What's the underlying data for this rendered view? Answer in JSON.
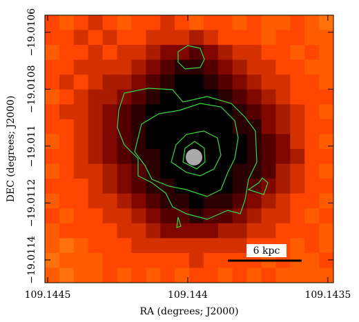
{
  "chart_data": {
    "type": "heatmap",
    "xlabel": "RA (degrees; J2000)",
    "ylabel": "DEC (degrees; J2000)",
    "xlim": [
      109.14451,
      109.14348
    ],
    "ylim": [
      -19.01054,
      -19.01148
    ],
    "xticks": [
      109.1445,
      109.144,
      109.1435
    ],
    "yticks": [
      {
        "value": -19.0106,
        "label": "−19.0106"
      },
      {
        "value": -19.0108,
        "label": "−19.0108"
      },
      {
        "value": -19.011,
        "label": "−19.011"
      },
      {
        "value": -19.0112,
        "label": "−19.0112"
      },
      {
        "value": -19.0114,
        "label": "−19.0114"
      }
    ],
    "scale_bar_label": "6 kpc",
    "image": [
      [
        6,
        7,
        6,
        5,
        6,
        7,
        6,
        6,
        5,
        6,
        7,
        6,
        6,
        7,
        6,
        7,
        7,
        6,
        7,
        8
      ],
      [
        6,
        6,
        5,
        6,
        5,
        6,
        6,
        5,
        5,
        5,
        4,
        5,
        6,
        6,
        6,
        7,
        6,
        6,
        7,
        7
      ],
      [
        7,
        6,
        6,
        5,
        6,
        5,
        5,
        4,
        3,
        3,
        2,
        3,
        4,
        5,
        5,
        6,
        6,
        7,
        6,
        7
      ],
      [
        6,
        6,
        5,
        5,
        5,
        5,
        4,
        3,
        2,
        1,
        1,
        2,
        3,
        4,
        5,
        5,
        6,
        6,
        7,
        7
      ],
      [
        6,
        5,
        6,
        5,
        4,
        4,
        3,
        2,
        1,
        0,
        0,
        1,
        2,
        3,
        4,
        5,
        5,
        6,
        6,
        7
      ],
      [
        7,
        6,
        5,
        4,
        4,
        3,
        2,
        1,
        0,
        0,
        0,
        0,
        1,
        2,
        3,
        4,
        5,
        6,
        6,
        6
      ],
      [
        6,
        5,
        5,
        4,
        3,
        2,
        1,
        0,
        0,
        0,
        0,
        0,
        0,
        1,
        2,
        3,
        4,
        5,
        6,
        7
      ],
      [
        6,
        6,
        5,
        4,
        3,
        2,
        1,
        0,
        0,
        0,
        0,
        0,
        0,
        1,
        1,
        3,
        4,
        5,
        6,
        6
      ],
      [
        7,
        6,
        5,
        4,
        3,
        2,
        1,
        0,
        0,
        0,
        0,
        0,
        0,
        0,
        1,
        2,
        3,
        5,
        6,
        7
      ],
      [
        6,
        6,
        5,
        4,
        3,
        2,
        1,
        1,
        0,
        0,
        0,
        0,
        0,
        0,
        1,
        2,
        3,
        4,
        6,
        6
      ],
      [
        7,
        6,
        5,
        5,
        4,
        3,
        2,
        1,
        0,
        0,
        0,
        0,
        0,
        1,
        1,
        2,
        4,
        5,
        6,
        7
      ],
      [
        6,
        6,
        6,
        5,
        4,
        3,
        2,
        1,
        1,
        0,
        0,
        0,
        0,
        1,
        2,
        3,
        4,
        5,
        6,
        6
      ],
      [
        7,
        6,
        6,
        5,
        5,
        4,
        3,
        2,
        1,
        1,
        0,
        1,
        1,
        2,
        3,
        4,
        5,
        6,
        6,
        7
      ],
      [
        6,
        7,
        6,
        6,
        5,
        5,
        4,
        3,
        2,
        2,
        1,
        2,
        2,
        3,
        4,
        5,
        5,
        6,
        7,
        6
      ],
      [
        7,
        6,
        6,
        6,
        6,
        5,
        5,
        4,
        3,
        3,
        3,
        3,
        4,
        4,
        5,
        5,
        6,
        6,
        6,
        7
      ],
      [
        7,
        8,
        7,
        6,
        6,
        6,
        5,
        5,
        5,
        5,
        5,
        5,
        5,
        5,
        6,
        6,
        6,
        7,
        6,
        7
      ],
      [
        8,
        7,
        7,
        7,
        6,
        6,
        6,
        6,
        6,
        6,
        5,
        6,
        6,
        6,
        6,
        7,
        6,
        7,
        7,
        6
      ],
      [
        7,
        8,
        7,
        7,
        6,
        7,
        6,
        7,
        6,
        7,
        6,
        6,
        7,
        6,
        7,
        6,
        7,
        7,
        7,
        7
      ]
    ]
  }
}
